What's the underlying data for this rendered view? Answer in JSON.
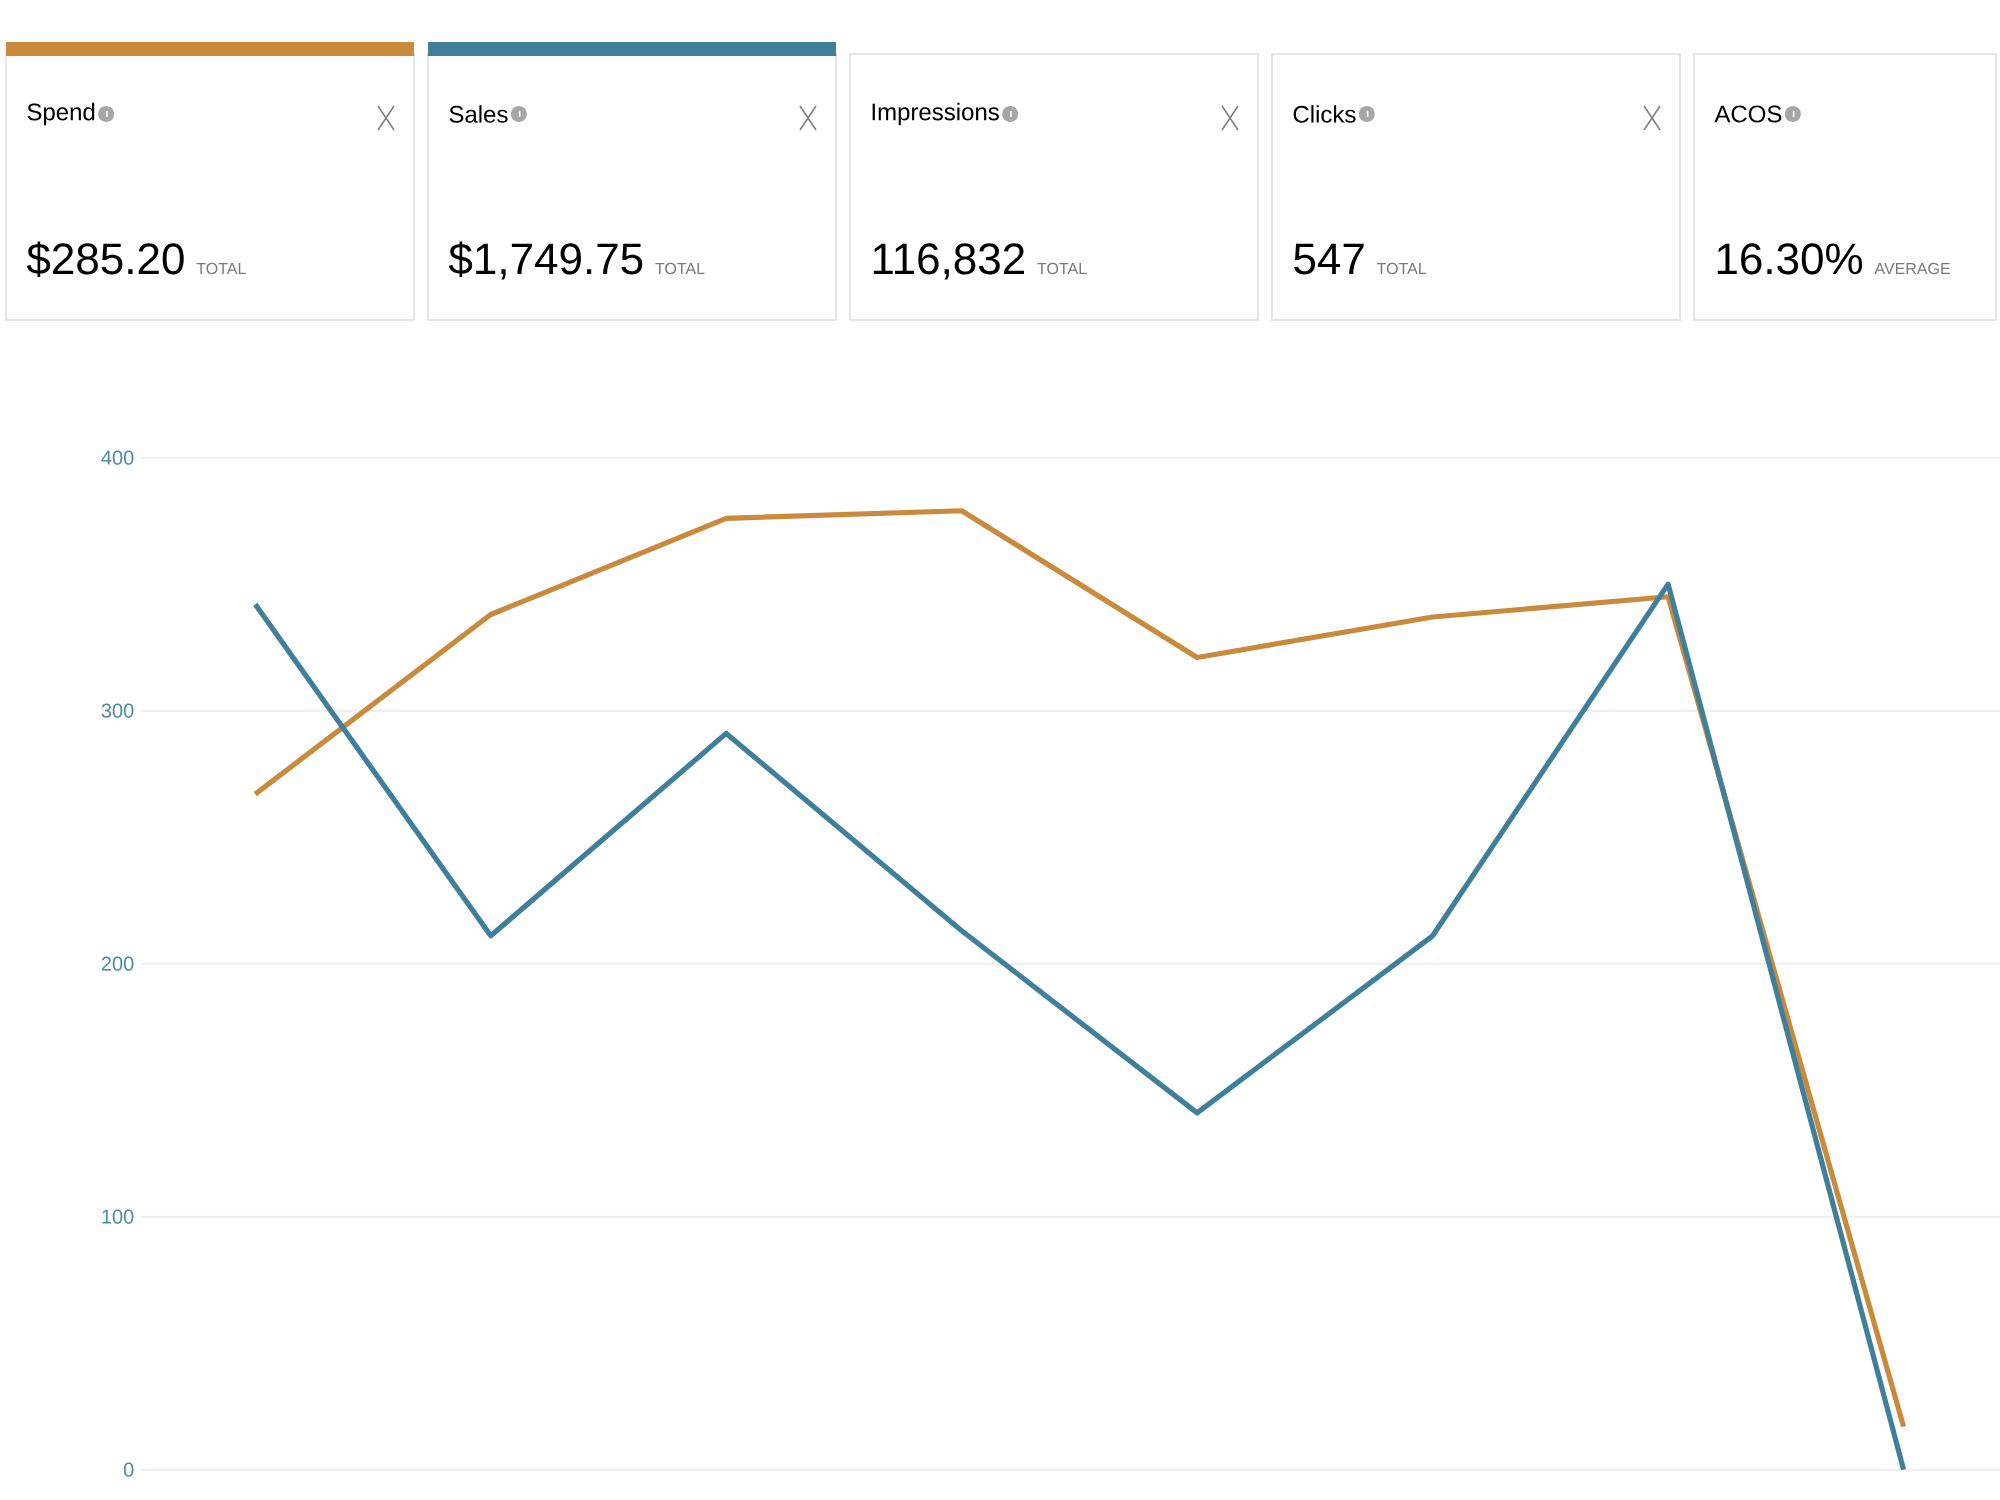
{
  "chart_data": [
    {
      "type": "other",
      "title": "Spend",
      "annotations": [
        "$285.20",
        "TOTAL"
      ]
    },
    {
      "type": "other",
      "title": "Sales",
      "annotations": [
        "$1,749.75",
        "TOTAL"
      ]
    },
    {
      "type": "other",
      "title": "Impressions",
      "annotations": [
        "116,832",
        "TOTAL"
      ]
    },
    {
      "type": "other",
      "title": "Clicks",
      "annotations": [
        "547",
        "TOTAL"
      ]
    },
    {
      "type": "other",
      "title": "ACOS",
      "annotations": [
        "16.30%",
        "AVERAGE"
      ]
    },
    {
      "type": "line",
      "categories": [
        null,
        null,
        null,
        null,
        null,
        null,
        null,
        null
      ],
      "series": [
        {
          "color": "#c98a3c",
          "values": [
            267,
            338,
            376,
            379,
            321,
            337,
            345,
            17
          ]
        },
        {
          "color": "#3f7f9a",
          "values": [
            342,
            211,
            291,
            213,
            141,
            211,
            350,
            0
          ]
        }
      ],
      "ylim": [
        0,
        400
      ],
      "yticks": [
        0,
        100,
        200,
        300,
        400
      ],
      "grid": "y"
    }
  ]
}
